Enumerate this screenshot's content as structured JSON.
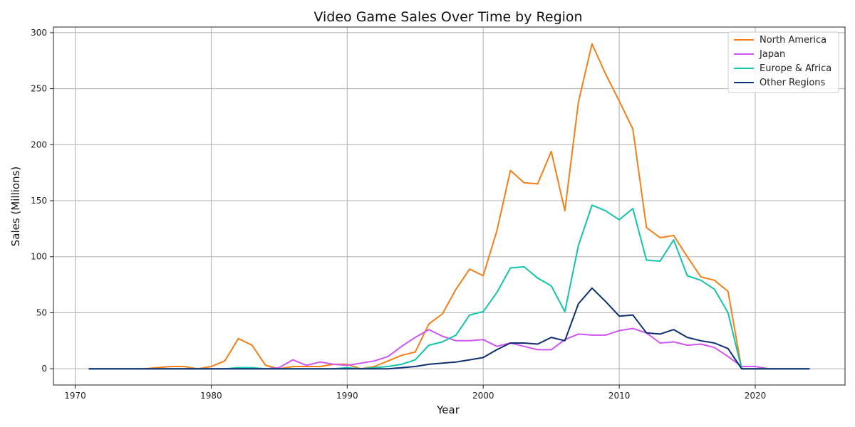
{
  "chart_data": {
    "type": "line",
    "title": "Video Game Sales Over Time by Region",
    "xlabel": "Year",
    "ylabel": "Sales (Millions)",
    "xlim": [
      1968.4,
      2026.6
    ],
    "ylim": [
      -14.5,
      305
    ],
    "xticks": [
      1970,
      1980,
      1990,
      2000,
      2010,
      2020
    ],
    "yticks": [
      0,
      50,
      100,
      150,
      200,
      250,
      300
    ],
    "grid": true,
    "legend_position": "top-right",
    "x": [
      1971,
      1972,
      1973,
      1974,
      1975,
      1976,
      1977,
      1978,
      1979,
      1980,
      1981,
      1982,
      1983,
      1984,
      1985,
      1986,
      1987,
      1988,
      1989,
      1990,
      1991,
      1992,
      1993,
      1994,
      1995,
      1996,
      1997,
      1998,
      1999,
      2000,
      2001,
      2002,
      2003,
      2004,
      2005,
      2006,
      2007,
      2008,
      2009,
      2010,
      2011,
      2012,
      2013,
      2014,
      2015,
      2016,
      2017,
      2018,
      2019,
      2020,
      2021,
      2022,
      2023,
      2024
    ],
    "series": [
      {
        "name": "North America",
        "color": "#f57f17",
        "values": [
          0,
          0,
          0,
          0,
          0,
          1,
          2,
          2,
          0,
          2,
          7,
          27,
          21,
          3,
          0,
          2,
          2,
          2,
          4,
          4,
          0,
          2,
          7,
          12,
          15,
          40,
          49,
          71,
          89,
          83,
          123,
          177,
          166,
          165,
          194,
          141,
          238,
          290,
          263,
          239,
          214,
          126,
          117,
          119,
          100,
          82,
          79,
          69,
          0,
          0,
          0,
          0,
          0,
          0
        ]
      },
      {
        "name": "Japan",
        "color": "#d055f0",
        "values": [
          0,
          0,
          0,
          0,
          0,
          0,
          0,
          0,
          0,
          0,
          0,
          0,
          0,
          0,
          1,
          8,
          3,
          6,
          4,
          3,
          5,
          7,
          11,
          20,
          28,
          35,
          29,
          25,
          25,
          26,
          20,
          23,
          20,
          17,
          17,
          26,
          31,
          30,
          30,
          34,
          36,
          32,
          23,
          24,
          21,
          22,
          19,
          11,
          2,
          2,
          0,
          0,
          0,
          0
        ]
      },
      {
        "name": "Europe & Africa",
        "color": "#12c4aa",
        "values": [
          0,
          0,
          0,
          0,
          0,
          0,
          0,
          0,
          0,
          0,
          0,
          1,
          1,
          0,
          0,
          0,
          0,
          0,
          0,
          1,
          0,
          1,
          2,
          4,
          8,
          21,
          24,
          30,
          48,
          51,
          68,
          90,
          91,
          81,
          74,
          51,
          110,
          146,
          141,
          133,
          143,
          97,
          96,
          115,
          83,
          79,
          71,
          50,
          0,
          0,
          0,
          0,
          0,
          0
        ]
      },
      {
        "name": "Other Regions",
        "color": "#0d2f6f",
        "values": [
          0,
          0,
          0,
          0,
          0,
          0,
          0,
          0,
          0,
          0,
          0,
          0,
          0,
          0,
          0,
          0,
          0,
          0,
          0,
          0,
          0,
          0,
          0,
          1,
          2,
          4,
          5,
          6,
          8,
          10,
          17,
          23,
          23,
          22,
          28,
          25,
          58,
          72,
          60,
          47,
          48,
          32,
          31,
          35,
          28,
          25,
          23,
          18,
          0,
          0,
          0,
          0,
          0,
          0
        ]
      }
    ]
  }
}
